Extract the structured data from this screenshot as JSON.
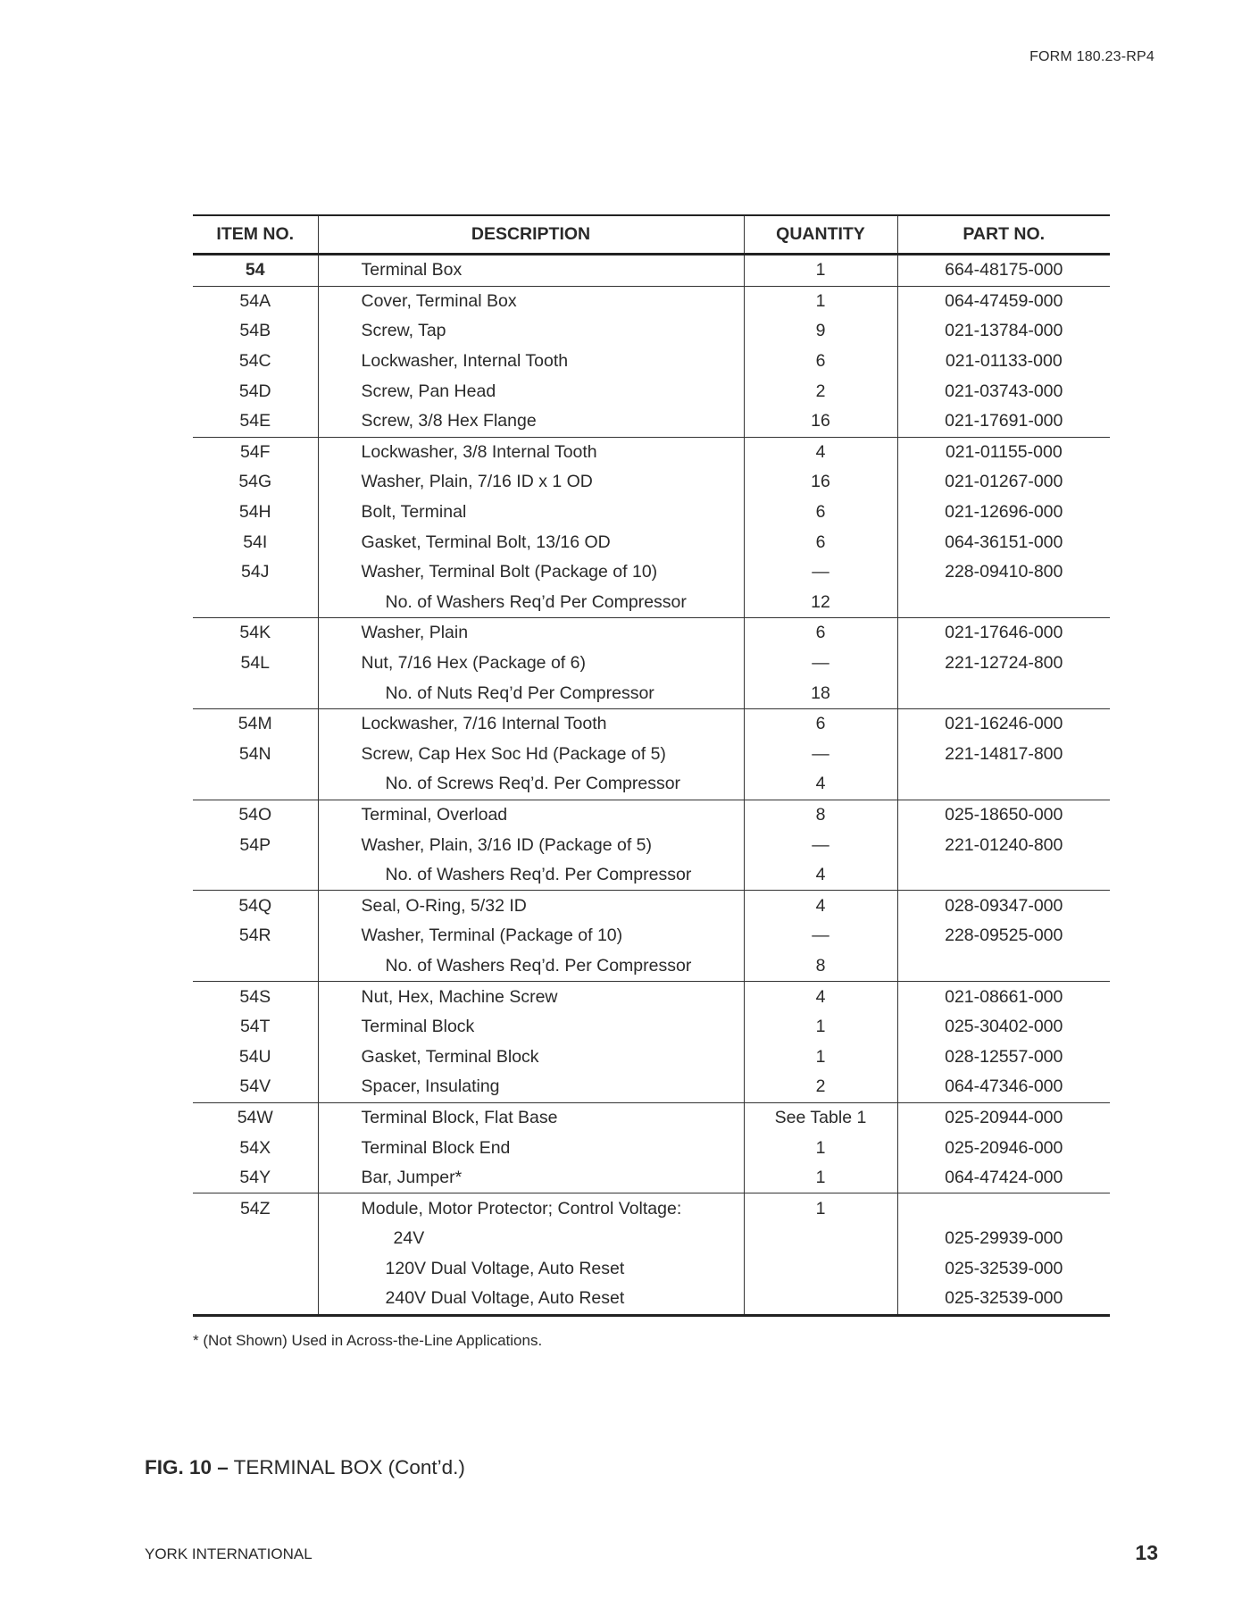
{
  "header": {
    "form_number": "FORM 180.23-RP4"
  },
  "table": {
    "columns": [
      "ITEM NO.",
      "DESCRIPTION",
      "QUANTITY",
      "PART NO."
    ],
    "rows": [
      {
        "item": "54",
        "desc": "Terminal Box",
        "qty": "1",
        "part": "664-48175-000",
        "bold": true,
        "group_end": true
      },
      {
        "item": "54A",
        "desc": "Cover, Terminal Box",
        "qty": "1",
        "part": "064-47459-000"
      },
      {
        "item": "54B",
        "desc": "Screw, Tap",
        "qty": "9",
        "part": "021-13784-000"
      },
      {
        "item": "54C",
        "desc": "Lockwasher, Internal Tooth",
        "qty": "6",
        "part": "021-01133-000"
      },
      {
        "item": "54D",
        "desc": "Screw, Pan Head",
        "qty": "2",
        "part": "021-03743-000"
      },
      {
        "item": "54E",
        "desc": "Screw, 3/8 Hex Flange",
        "qty": "16",
        "part": "021-17691-000",
        "group_end": true
      },
      {
        "item": "54F",
        "desc": "Lockwasher, 3/8 Internal Tooth",
        "qty": "4",
        "part": "021-01155-000"
      },
      {
        "item": "54G",
        "desc": "Washer, Plain, 7/16 ID x 1 OD",
        "qty": "16",
        "part": "021-01267-000"
      },
      {
        "item": "54H",
        "desc": "Bolt, Terminal",
        "qty": "6",
        "part": "021-12696-000"
      },
      {
        "item": "54I",
        "desc": "Gasket, Terminal Bolt, 13/16 OD",
        "qty": "6",
        "part": "064-36151-000"
      },
      {
        "item": "54J",
        "desc": "Washer, Terminal Bolt (Package of 10)",
        "qty": "—",
        "part": "228-09410-800"
      },
      {
        "item": "",
        "desc": "No. of Washers Req’d Per Compressor",
        "qty": "12",
        "part": "",
        "sub": 1,
        "group_end": true
      },
      {
        "item": "54K",
        "desc": "Washer, Plain",
        "qty": "6",
        "part": "021-17646-000"
      },
      {
        "item": "54L",
        "desc": "Nut, 7/16 Hex (Package of 6)",
        "qty": "—",
        "part": "221-12724-800"
      },
      {
        "item": "",
        "desc": "No. of Nuts Req’d Per Compressor",
        "qty": "18",
        "part": "",
        "sub": 1,
        "group_end": true
      },
      {
        "item": "54M",
        "desc": "Lockwasher, 7/16 Internal Tooth",
        "qty": "6",
        "part": "021-16246-000"
      },
      {
        "item": "54N",
        "desc": "Screw, Cap Hex Soc Hd (Package of 5)",
        "qty": "—",
        "part": "221-14817-800"
      },
      {
        "item": "",
        "desc": "No. of Screws Req’d. Per Compressor",
        "qty": "4",
        "part": "",
        "sub": 1,
        "group_end": true
      },
      {
        "item": "54O",
        "desc": "Terminal, Overload",
        "qty": "8",
        "part": "025-18650-000"
      },
      {
        "item": "54P",
        "desc": "Washer, Plain, 3/16 ID (Package of 5)",
        "qty": "—",
        "part": "221-01240-800"
      },
      {
        "item": "",
        "desc": "No. of Washers Req’d. Per Compressor",
        "qty": "4",
        "part": "",
        "sub": 1,
        "group_end": true
      },
      {
        "item": "54Q",
        "desc": "Seal, O-Ring, 5/32 ID",
        "qty": "4",
        "part": "028-09347-000"
      },
      {
        "item": "54R",
        "desc": "Washer, Terminal (Package of 10)",
        "qty": "—",
        "part": "228-09525-000"
      },
      {
        "item": "",
        "desc": "No. of Washers Req’d. Per Compressor",
        "qty": "8",
        "part": "",
        "sub": 1,
        "group_end": true
      },
      {
        "item": "54S",
        "desc": "Nut, Hex, Machine Screw",
        "qty": "4",
        "part": "021-08661-000"
      },
      {
        "item": "54T",
        "desc": "Terminal Block",
        "qty": "1",
        "part": "025-30402-000"
      },
      {
        "item": "54U",
        "desc": "Gasket, Terminal Block",
        "qty": "1",
        "part": "028-12557-000"
      },
      {
        "item": "54V",
        "desc": "Spacer, Insulating",
        "qty": "2",
        "part": "064-47346-000",
        "group_end": true
      },
      {
        "item": "54W",
        "desc": "Terminal Block, Flat Base",
        "qty": "See Table 1",
        "part": "025-20944-000"
      },
      {
        "item": "54X",
        "desc": "Terminal Block End",
        "qty": "1",
        "part": "025-20946-000"
      },
      {
        "item": "54Y",
        "desc": "Bar, Jumper*",
        "qty": "1",
        "part": "064-47424-000",
        "group_end": true
      },
      {
        "item": "54Z",
        "desc": "Module, Motor Protector; Control Voltage:",
        "qty": "1",
        "part": ""
      },
      {
        "item": "",
        "desc": "24V",
        "qty": "",
        "part": "025-29939-000",
        "sub": 2
      },
      {
        "item": "",
        "desc": "120V  Dual Voltage, Auto Reset",
        "qty": "",
        "part": "025-32539-000",
        "sub": 1
      },
      {
        "item": "",
        "desc": "240V  Dual Voltage, Auto Reset",
        "qty": "",
        "part": "025-32539-000",
        "sub": 1,
        "last": true
      }
    ]
  },
  "footnote": "* (Not Shown) Used in Across-the-Line Applications.",
  "figure": {
    "label": "FIG. 10  –",
    "title": " TERMINAL BOX  (Cont’d.)"
  },
  "footer": {
    "company": "YORK INTERNATIONAL",
    "page_number": "13"
  }
}
